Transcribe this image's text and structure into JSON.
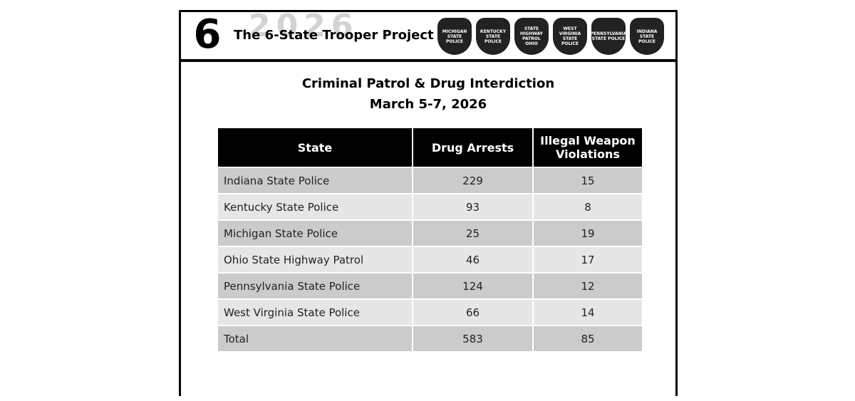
{
  "header": {
    "title": "The 6-State Trooper Project",
    "year": "2026",
    "logo": "6",
    "badges": [
      "MICHIGAN STATE POLICE",
      "KENTUCKY STATE POLICE",
      "STATE HIGHWAY PATROL OHIO",
      "WEST VIRGINIA STATE POLICE",
      "PENNSYLVANIA STATE POLICE",
      "INDIANA STATE POLICE"
    ]
  },
  "report": {
    "title": "Criminal Patrol & Drug Interdiction",
    "subtitle": "March 5-7, 2026"
  },
  "table": {
    "columns": [
      "State",
      "Drug Arrests",
      "Illegal Weapon Violations"
    ],
    "rows": [
      [
        "Indiana State Police",
        229,
        15
      ],
      [
        "Kentucky State Police",
        93,
        8
      ],
      [
        "Michigan State Police",
        25,
        19
      ],
      [
        "Ohio State Highway Patrol",
        46,
        17
      ],
      [
        "Pennsylvania State Police",
        124,
        12
      ],
      [
        "West Virginia State Police",
        66,
        14
      ],
      [
        "Total",
        583,
        85
      ]
    ]
  }
}
